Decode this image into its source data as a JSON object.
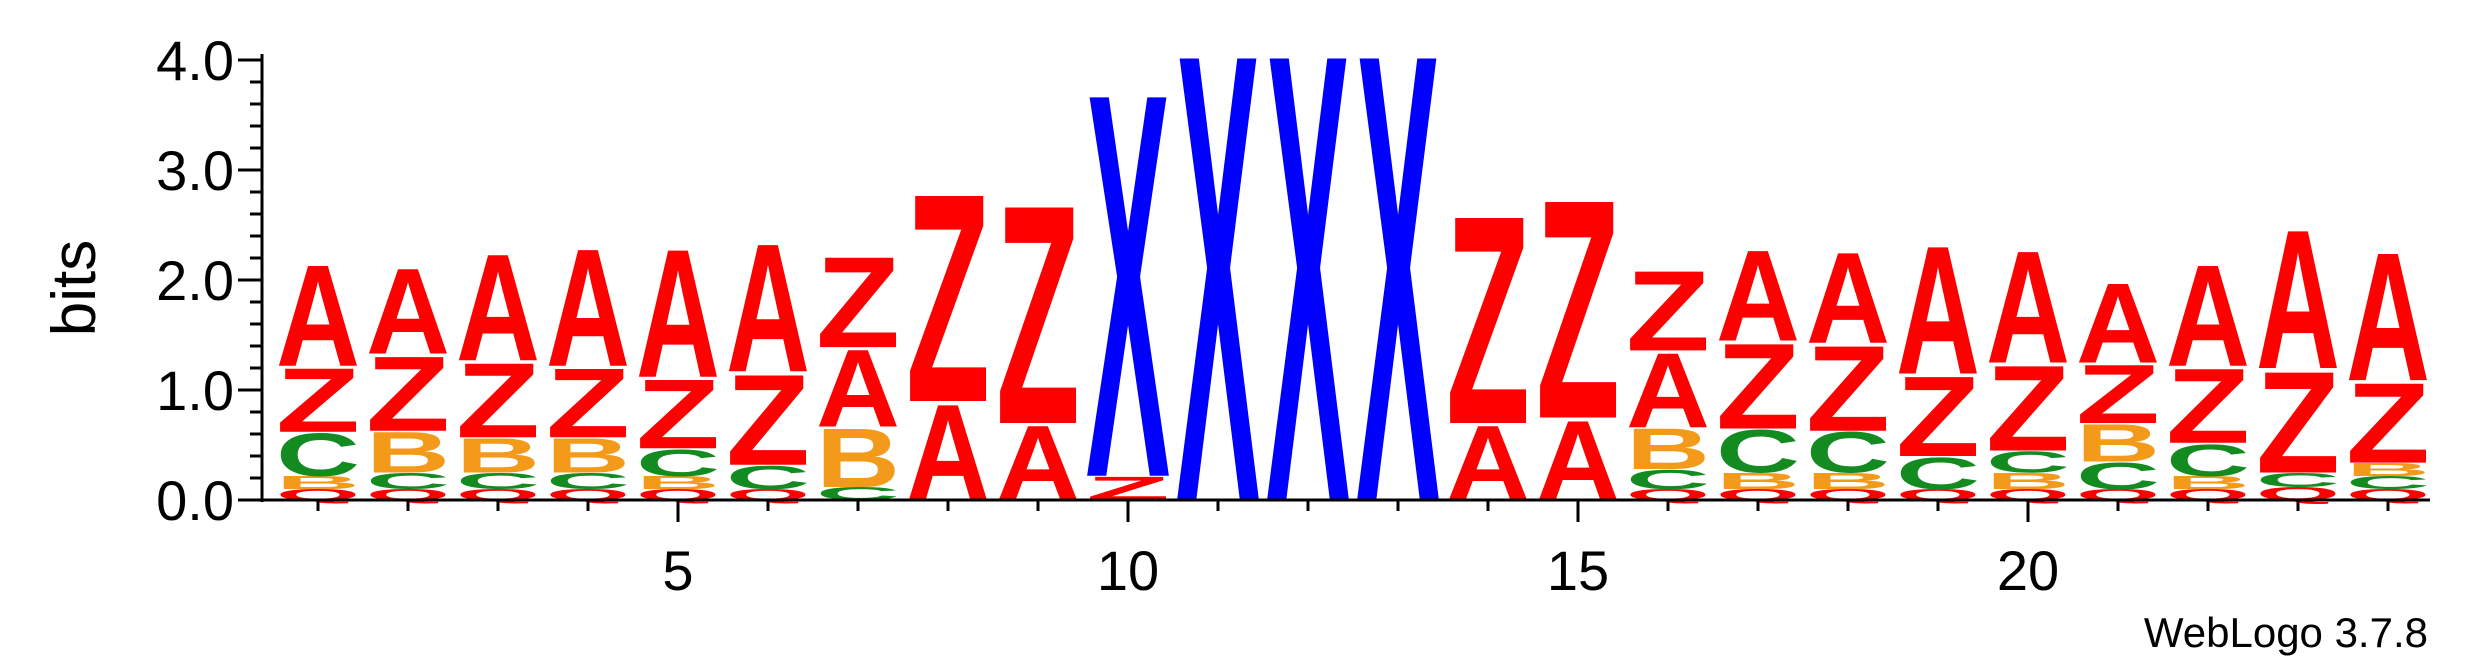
{
  "chart_data": {
    "type": "sequence-logo",
    "ylabel": "bits",
    "ylim": [
      0,
      4.0
    ],
    "ytick_labels": [
      "0.0",
      "1.0",
      "2.0",
      "3.0",
      "4.0"
    ],
    "x_first": 1,
    "x_last": 24,
    "xtick_labels": [
      "5",
      "10",
      "15",
      "20"
    ],
    "xtick_values": [
      5,
      10,
      15,
      20
    ],
    "credit": "WebLogo 3.7.8",
    "colors": {
      "A": "#ff0000",
      "Z": "#ff0000",
      "Q": "#ff0000",
      "B": "#f39a1b",
      "C": "#138b20",
      "X": "#0000ff"
    },
    "positions": [
      {
        "x": 1,
        "stack": [
          [
            "Q",
            0.1
          ],
          [
            "B",
            0.12
          ],
          [
            "C",
            0.4
          ],
          [
            "Z",
            0.6
          ],
          [
            "A",
            0.95
          ]
        ]
      },
      {
        "x": 2,
        "stack": [
          [
            "Q",
            0.1
          ],
          [
            "C",
            0.15
          ],
          [
            "B",
            0.38
          ],
          [
            "Z",
            0.7
          ],
          [
            "A",
            0.8
          ]
        ]
      },
      {
        "x": 3,
        "stack": [
          [
            "Q",
            0.1
          ],
          [
            "C",
            0.15
          ],
          [
            "B",
            0.32
          ],
          [
            "Z",
            0.7
          ],
          [
            "A",
            1.0
          ]
        ]
      },
      {
        "x": 4,
        "stack": [
          [
            "Q",
            0.1
          ],
          [
            "C",
            0.15
          ],
          [
            "B",
            0.32
          ],
          [
            "Z",
            0.65
          ],
          [
            "A",
            1.1
          ]
        ]
      },
      {
        "x": 5,
        "stack": [
          [
            "Q",
            0.1
          ],
          [
            "B",
            0.12
          ],
          [
            "C",
            0.25
          ],
          [
            "Z",
            0.65
          ],
          [
            "A",
            1.2
          ]
        ]
      },
      {
        "x": 6,
        "stack": [
          [
            "Q",
            0.1
          ],
          [
            "C",
            0.22
          ],
          [
            "Z",
            0.85
          ],
          [
            "A",
            1.2
          ]
        ]
      },
      {
        "x": 7,
        "stack": [
          [
            "C",
            0.12
          ],
          [
            "B",
            0.55
          ],
          [
            "A",
            0.72
          ],
          [
            "Z",
            0.85
          ]
        ]
      },
      {
        "x": 8,
        "stack": [
          [
            "A",
            0.9
          ],
          [
            "Z",
            1.95
          ]
        ]
      },
      {
        "x": 9,
        "stack": [
          [
            "A",
            0.7
          ],
          [
            "Z",
            2.05
          ]
        ]
      },
      {
        "x": 10,
        "stack": [
          [
            "Z",
            0.22
          ],
          [
            "X",
            3.6
          ]
        ]
      },
      {
        "x": 11,
        "stack": [
          [
            "X",
            4.2
          ]
        ]
      },
      {
        "x": 12,
        "stack": [
          [
            "X",
            4.2
          ]
        ]
      },
      {
        "x": 13,
        "stack": [
          [
            "X",
            4.2
          ]
        ]
      },
      {
        "x": 14,
        "stack": [
          [
            "A",
            0.7
          ],
          [
            "Z",
            1.95
          ]
        ]
      },
      {
        "x": 15,
        "stack": [
          [
            "A",
            0.75
          ],
          [
            "Z",
            2.05
          ]
        ]
      },
      {
        "x": 16,
        "stack": [
          [
            "Q",
            0.1
          ],
          [
            "C",
            0.18
          ],
          [
            "B",
            0.38
          ],
          [
            "A",
            0.7
          ],
          [
            "Z",
            0.75
          ]
        ]
      },
      {
        "x": 17,
        "stack": [
          [
            "Q",
            0.1
          ],
          [
            "B",
            0.15
          ],
          [
            "C",
            0.4
          ],
          [
            "Z",
            0.8
          ],
          [
            "A",
            0.85
          ]
        ]
      },
      {
        "x": 18,
        "stack": [
          [
            "Q",
            0.1
          ],
          [
            "B",
            0.15
          ],
          [
            "C",
            0.38
          ],
          [
            "Z",
            0.8
          ],
          [
            "A",
            0.85
          ]
        ]
      },
      {
        "x": 19,
        "stack": [
          [
            "Q",
            0.1
          ],
          [
            "C",
            0.3
          ],
          [
            "Z",
            0.75
          ],
          [
            "A",
            1.2
          ]
        ]
      },
      {
        "x": 20,
        "stack": [
          [
            "Q",
            0.1
          ],
          [
            "B",
            0.15
          ],
          [
            "C",
            0.2
          ],
          [
            "Z",
            0.8
          ],
          [
            "A",
            1.05
          ]
        ]
      },
      {
        "x": 21,
        "stack": [
          [
            "Q",
            0.1
          ],
          [
            "C",
            0.25
          ],
          [
            "B",
            0.35
          ],
          [
            "Z",
            0.55
          ],
          [
            "A",
            0.75
          ]
        ]
      },
      {
        "x": 22,
        "stack": [
          [
            "Q",
            0.1
          ],
          [
            "B",
            0.12
          ],
          [
            "C",
            0.3
          ],
          [
            "Z",
            0.7
          ],
          [
            "A",
            0.95
          ]
        ]
      },
      {
        "x": 23,
        "stack": [
          [
            "Q",
            0.12
          ],
          [
            "C",
            0.13
          ],
          [
            "Z",
            0.95
          ],
          [
            "A",
            1.3
          ]
        ]
      },
      {
        "x": 24,
        "stack": [
          [
            "Q",
            0.1
          ],
          [
            "C",
            0.12
          ],
          [
            "B",
            0.12
          ],
          [
            "Z",
            0.75
          ],
          [
            "A",
            1.2
          ]
        ]
      }
    ]
  }
}
